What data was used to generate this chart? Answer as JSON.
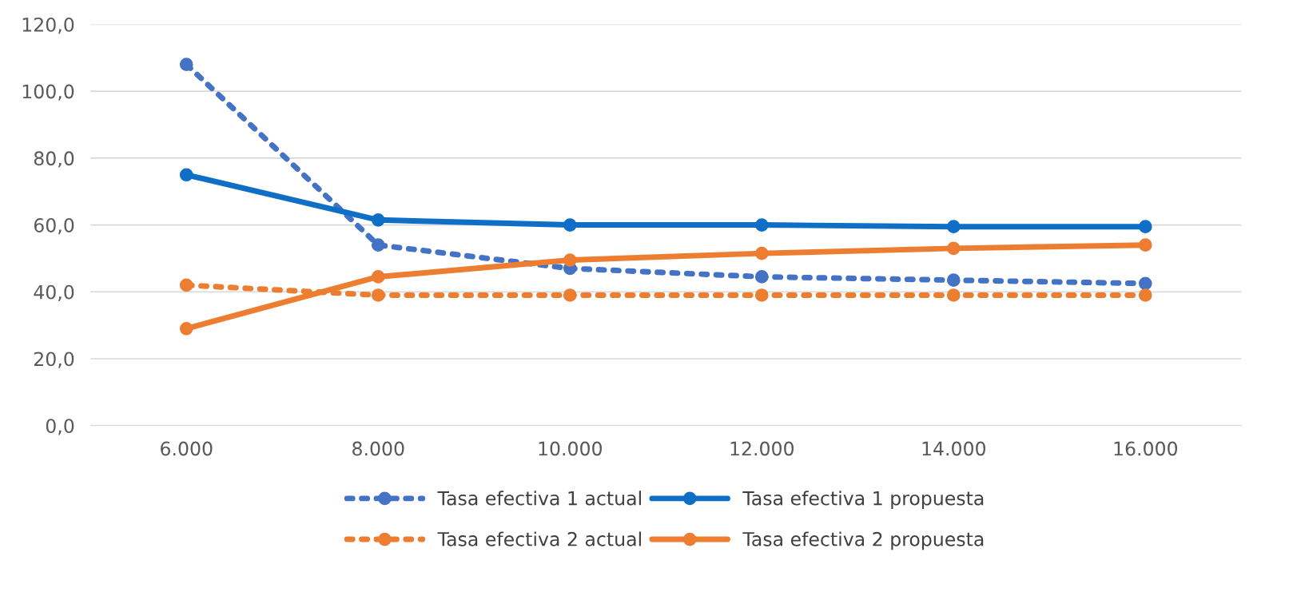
{
  "chart_data": {
    "type": "line",
    "categories": [
      "6.000",
      "8.000",
      "10.000",
      "12.000",
      "14.000",
      "16.000"
    ],
    "series": [
      {
        "name": "Tasa efectiva 1 actual",
        "color": "#4472c4",
        "line_style": "dotted",
        "marker": "circle",
        "values": [
          108,
          54,
          47,
          44.5,
          43.5,
          42.5
        ]
      },
      {
        "name": "Tasa efectiva 2 actual",
        "color": "#ed7d31",
        "line_style": "dotted",
        "marker": "circle",
        "values": [
          42,
          39,
          39,
          39,
          39,
          39
        ]
      },
      {
        "name": "Tasa efectiva 1 propuesta",
        "color": "#0f6fc6",
        "line_style": "solid",
        "marker": "circle",
        "values": [
          75,
          61.5,
          60,
          60,
          59.5,
          59.5
        ]
      },
      {
        "name": "Tasa efectiva 2 propuesta",
        "color": "#ed7d31",
        "line_style": "solid",
        "marker": "circle",
        "values": [
          29,
          44.5,
          49.5,
          51.5,
          53,
          54
        ]
      }
    ],
    "ylim": [
      0,
      120
    ],
    "yticks": [
      {
        "value": 0,
        "label": "0,0"
      },
      {
        "value": 20,
        "label": "20,0"
      },
      {
        "value": 40,
        "label": "40,0"
      },
      {
        "value": 60,
        "label": "60,0"
      },
      {
        "value": 80,
        "label": "80,0"
      },
      {
        "value": 100,
        "label": "100,0"
      },
      {
        "value": 120,
        "label": "120,0"
      }
    ],
    "grid": "y",
    "legend": "bottom"
  }
}
